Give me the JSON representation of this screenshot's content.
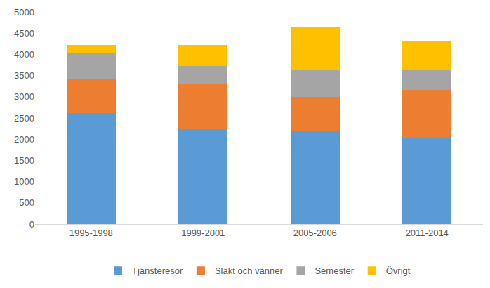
{
  "chart_data": {
    "type": "bar",
    "stacked": true,
    "categories": [
      "1995-1998",
      "1999-2001",
      "2005-2006",
      "2011-2014"
    ],
    "series": [
      {
        "name": "Tjänsteresor",
        "color": "#5b9bd5",
        "values": [
          2610,
          2250,
          2210,
          2030
        ]
      },
      {
        "name": "Släkt och vänner",
        "color": "#ed7d31",
        "values": [
          810,
          1040,
          790,
          1130
        ]
      },
      {
        "name": "Semester",
        "color": "#a5a5a5",
        "values": [
          600,
          430,
          620,
          470
        ]
      },
      {
        "name": "Övrigt",
        "color": "#ffc000",
        "values": [
          200,
          500,
          1010,
          690
        ]
      }
    ],
    "ylim": [
      0,
      5000
    ],
    "yticks": [
      0,
      500,
      1000,
      1500,
      2000,
      2500,
      3000,
      3500,
      4000,
      4500,
      5000
    ],
    "grid": false,
    "legend": "bottom"
  }
}
